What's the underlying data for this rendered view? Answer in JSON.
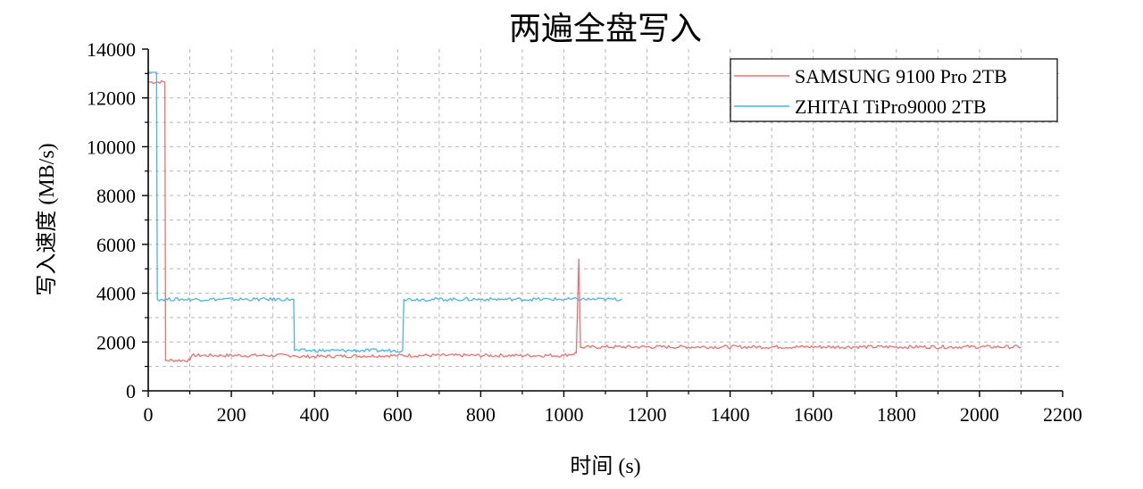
{
  "chart_data": {
    "type": "line",
    "title": "两遍全盘写入",
    "xlabel": "时间 (s)",
    "ylabel": "写入速度 (MB/s)",
    "xlim": [
      0,
      2200
    ],
    "ylim": [
      0,
      14000
    ],
    "xticks": [
      0,
      200,
      400,
      600,
      800,
      1000,
      1200,
      1400,
      1600,
      1800,
      2000,
      2200
    ],
    "yticks": [
      0,
      2000,
      4000,
      6000,
      8000,
      10000,
      12000,
      14000
    ],
    "grid": true,
    "legend_position": "top-right",
    "series": [
      {
        "name": "SAMSUNG 9100 Pro 2TB",
        "color": "#f07070",
        "points": [
          [
            0,
            12650
          ],
          [
            40,
            12650
          ],
          [
            42,
            1250
          ],
          [
            100,
            1250
          ],
          [
            105,
            1450
          ],
          [
            350,
            1450
          ],
          [
            360,
            1400
          ],
          [
            600,
            1450
          ],
          [
            1000,
            1450
          ],
          [
            1030,
            1550
          ],
          [
            1036,
            5400
          ],
          [
            1040,
            1780
          ],
          [
            1100,
            1800
          ],
          [
            2100,
            1800
          ]
        ]
      },
      {
        "name": "ZHITAI TiPro9000 2TB",
        "color": "#4ab4e8",
        "points": [
          [
            0,
            13050
          ],
          [
            20,
            13050
          ],
          [
            22,
            3750
          ],
          [
            350,
            3750
          ],
          [
            352,
            1650
          ],
          [
            612,
            1650
          ],
          [
            615,
            3750
          ],
          [
            1140,
            3750
          ]
        ]
      }
    ]
  }
}
